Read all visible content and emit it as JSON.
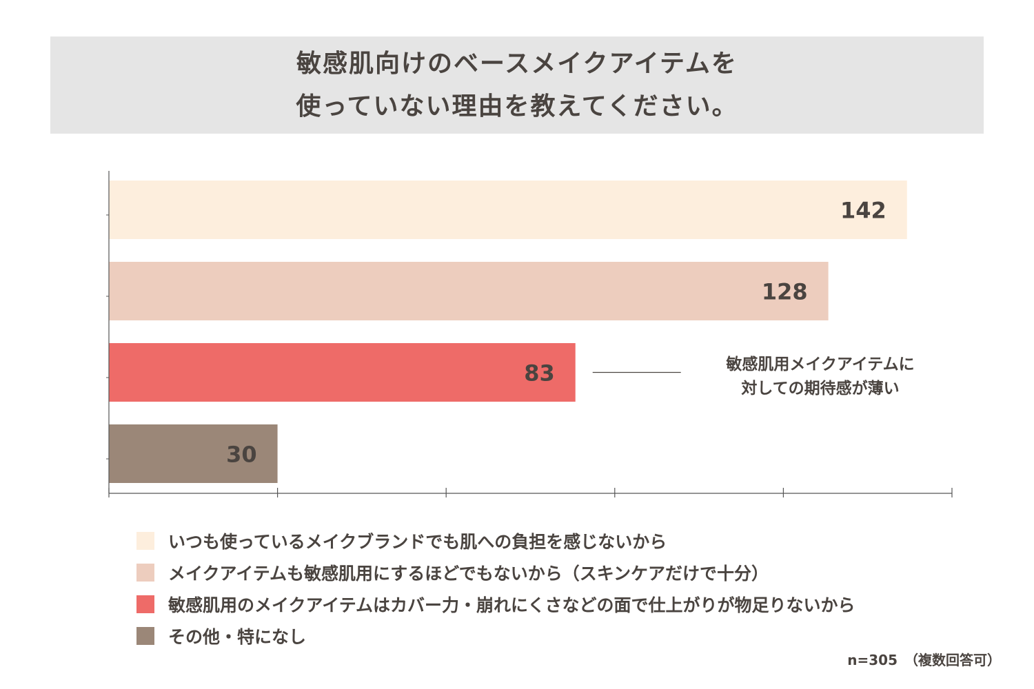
{
  "title": {
    "line1": "敏感肌向けのベースメイクアイテムを",
    "line2": "使っていない理由を教えてください。"
  },
  "chart_data": {
    "type": "bar",
    "orientation": "horizontal",
    "categories": [
      "いつも使っているメイクブランドでも肌への負担を感じないから",
      "メイクアイテムも敏感肌用にするほどでもないから（スキンケアだけで十分）",
      "敏感肌用のメイクアイテムはカバー力・崩れにくさなどの面で仕上がりが物足りないから",
      "その他・特になし"
    ],
    "values": [
      142,
      128,
      83,
      30
    ],
    "colors": [
      "#fdeedd",
      "#edcdbe",
      "#ee6b68",
      "#9b8778"
    ],
    "xlim": [
      0,
      150
    ],
    "x_ticks": [
      0,
      30,
      60,
      90,
      120,
      150
    ],
    "tick_labels_shown": false,
    "grid": false,
    "legend_position": "bottom",
    "annotation": {
      "target_index": 2,
      "line1": "敏感肌用メイクアイテムに",
      "line2": "対しての期待感が薄い"
    },
    "note": "n=305　（複数回答可）"
  }
}
